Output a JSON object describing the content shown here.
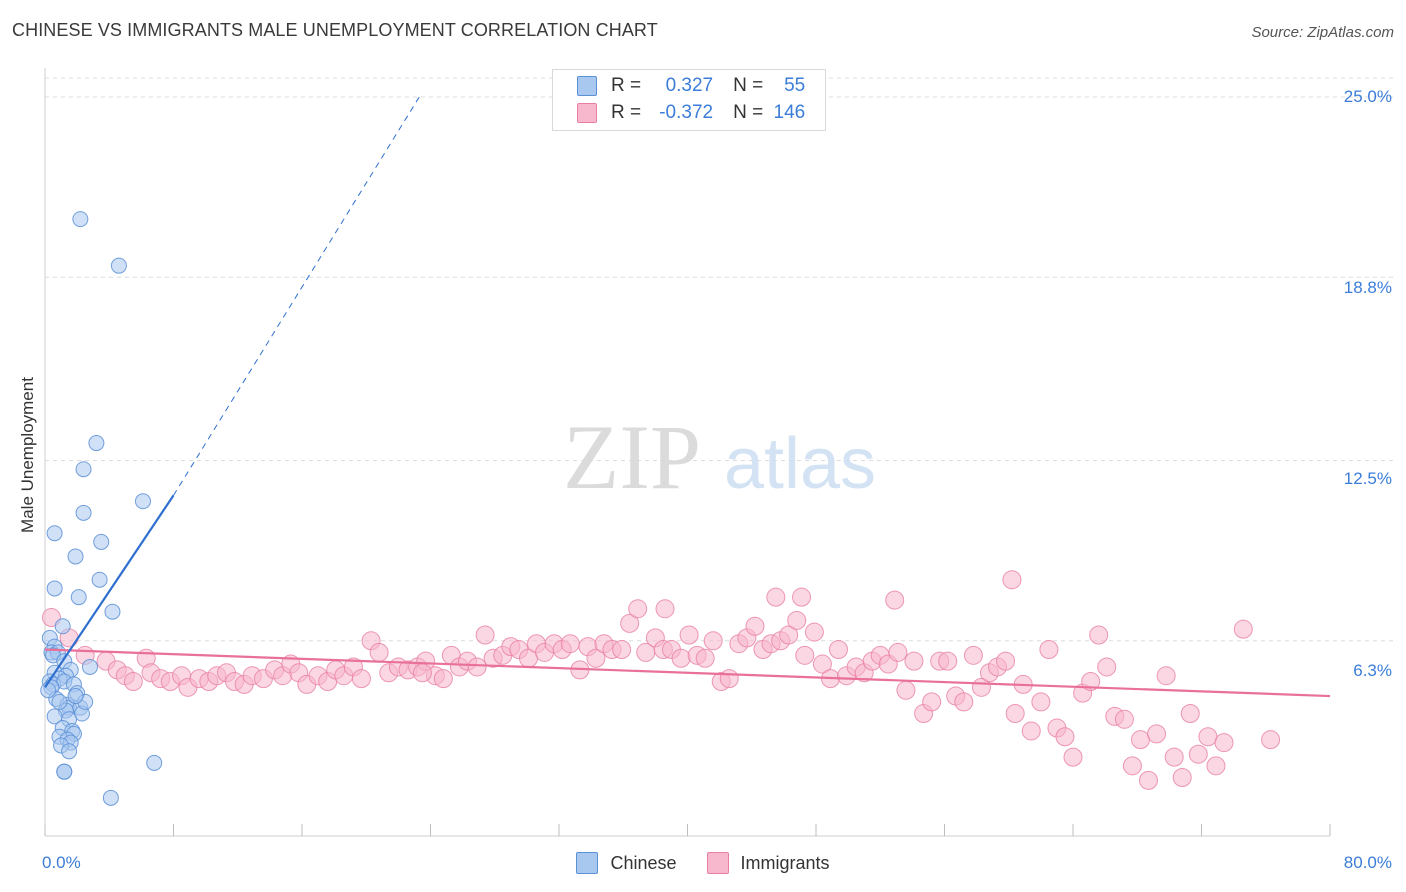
{
  "title": "CHINESE VS IMMIGRANTS MALE UNEMPLOYMENT CORRELATION CHART",
  "source": "Source: ZipAtlas.com",
  "watermark": {
    "zip": "ZIP",
    "atlas": "atlas"
  },
  "colors": {
    "chinese_fill": "#a9c8f0",
    "chinese_stroke": "#5b8fd6",
    "chinese_line": "#2f6fcf",
    "immigrants_fill": "#f7b7cc",
    "immigrants_stroke": "#e87fa3",
    "immigrants_line": "#e8709a",
    "tick_label": "#3b7dd8"
  },
  "legend": {
    "rows": [
      {
        "r_label": "R =",
        "r_value": "0.327",
        "n_label": "N =",
        "n_value": "55"
      },
      {
        "r_label": "R =",
        "r_value": "-0.372",
        "n_label": "N =",
        "n_value": "146"
      }
    ]
  },
  "bottom_legend": {
    "chinese": "Chinese",
    "immigrants": "Immigrants"
  },
  "chart_data": {
    "type": "scatter",
    "title": "CHINESE VS IMMIGRANTS MALE UNEMPLOYMENT CORRELATION CHART",
    "xlabel": "",
    "ylabel": "Male Unemployment",
    "xlim": [
      0,
      80
    ],
    "ylim": [
      0,
      27
    ],
    "x_tick_labels": [
      "0.0%",
      "80.0%"
    ],
    "y_ticks": [
      6.3,
      12.5,
      18.8,
      25.0
    ],
    "y_tick_labels": [
      "6.3%",
      "12.5%",
      "18.8%",
      "25.0%"
    ],
    "grid": "horizontal dashed",
    "series": [
      {
        "name": "Chinese",
        "r": 0.327,
        "n": 55,
        "trend": {
          "x0": 0.0,
          "y0": 4.7,
          "x1": 8.0,
          "y1": 11.3,
          "dashed_to_x": 23.3,
          "dashed_to_y": 25.0
        },
        "points": [
          [
            2.2,
            20.8
          ],
          [
            4.6,
            19.2
          ],
          [
            3.2,
            13.1
          ],
          [
            2.4,
            12.2
          ],
          [
            6.1,
            11.1
          ],
          [
            2.4,
            10.7
          ],
          [
            0.6,
            10.0
          ],
          [
            3.5,
            9.7
          ],
          [
            1.9,
            9.2
          ],
          [
            3.4,
            8.4
          ],
          [
            0.6,
            8.1
          ],
          [
            2.1,
            7.8
          ],
          [
            4.2,
            7.3
          ],
          [
            1.1,
            6.8
          ],
          [
            0.3,
            6.4
          ],
          [
            0.6,
            6.1
          ],
          [
            0.4,
            5.9
          ],
          [
            0.8,
            5.9
          ],
          [
            0.5,
            5.8
          ],
          [
            1.2,
            5.6
          ],
          [
            1.6,
            5.3
          ],
          [
            0.6,
            5.2
          ],
          [
            1.3,
            5.1
          ],
          [
            2.8,
            5.4
          ],
          [
            0.9,
            5.0
          ],
          [
            0.3,
            4.9
          ],
          [
            0.5,
            4.8
          ],
          [
            1.2,
            4.9
          ],
          [
            1.8,
            4.8
          ],
          [
            0.4,
            4.7
          ],
          [
            2.0,
            4.5
          ],
          [
            0.7,
            4.3
          ],
          [
            1.4,
            4.1
          ],
          [
            1.5,
            4.0
          ],
          [
            2.2,
            4.0
          ],
          [
            1.3,
            3.9
          ],
          [
            2.3,
            3.8
          ],
          [
            0.6,
            3.7
          ],
          [
            1.5,
            3.6
          ],
          [
            1.1,
            3.3
          ],
          [
            1.7,
            3.2
          ],
          [
            1.8,
            3.1
          ],
          [
            0.9,
            3.0
          ],
          [
            1.4,
            2.9
          ],
          [
            1.6,
            2.8
          ],
          [
            1.0,
            2.7
          ],
          [
            1.5,
            2.5
          ],
          [
            6.8,
            2.1
          ],
          [
            1.2,
            1.8
          ],
          [
            1.2,
            1.8
          ],
          [
            4.1,
            0.9
          ],
          [
            0.2,
            4.6
          ],
          [
            0.9,
            4.2
          ],
          [
            2.5,
            4.2
          ],
          [
            1.9,
            4.4
          ]
        ]
      },
      {
        "name": "Immigrants",
        "r": -0.372,
        "n": 146,
        "trend": {
          "x0": 0.0,
          "y0": 6.0,
          "x1": 80.0,
          "y1": 4.4
        },
        "points": [
          [
            0.4,
            7.1
          ],
          [
            1.5,
            6.4
          ],
          [
            2.5,
            5.8
          ],
          [
            3.8,
            5.6
          ],
          [
            4.5,
            5.3
          ],
          [
            5.0,
            5.1
          ],
          [
            5.5,
            4.9
          ],
          [
            6.3,
            5.7
          ],
          [
            6.6,
            5.2
          ],
          [
            7.2,
            5.0
          ],
          [
            7.8,
            4.9
          ],
          [
            8.5,
            5.1
          ],
          [
            8.9,
            4.7
          ],
          [
            9.6,
            5.0
          ],
          [
            10.2,
            4.9
          ],
          [
            10.7,
            5.1
          ],
          [
            11.3,
            5.2
          ],
          [
            11.8,
            4.9
          ],
          [
            12.4,
            4.8
          ],
          [
            12.9,
            5.1
          ],
          [
            13.6,
            5.0
          ],
          [
            14.3,
            5.3
          ],
          [
            14.8,
            5.1
          ],
          [
            15.3,
            5.5
          ],
          [
            15.8,
            5.2
          ],
          [
            16.3,
            4.8
          ],
          [
            17.0,
            5.1
          ],
          [
            17.6,
            4.9
          ],
          [
            18.1,
            5.3
          ],
          [
            18.6,
            5.1
          ],
          [
            19.2,
            5.4
          ],
          [
            19.7,
            5.0
          ],
          [
            20.3,
            6.3
          ],
          [
            20.8,
            5.9
          ],
          [
            21.4,
            5.2
          ],
          [
            22.0,
            5.4
          ],
          [
            22.6,
            5.3
          ],
          [
            23.2,
            5.4
          ],
          [
            23.7,
            5.6
          ],
          [
            24.3,
            5.1
          ],
          [
            24.8,
            5.0
          ],
          [
            25.3,
            5.8
          ],
          [
            25.8,
            5.4
          ],
          [
            26.3,
            5.6
          ],
          [
            26.9,
            5.4
          ],
          [
            27.4,
            6.5
          ],
          [
            27.9,
            5.7
          ],
          [
            28.5,
            5.8
          ],
          [
            29.0,
            6.1
          ],
          [
            29.5,
            6.0
          ],
          [
            30.1,
            5.7
          ],
          [
            30.6,
            6.2
          ],
          [
            31.1,
            5.9
          ],
          [
            31.7,
            6.2
          ],
          [
            32.2,
            6.0
          ],
          [
            32.7,
            6.2
          ],
          [
            33.3,
            5.3
          ],
          [
            33.8,
            6.1
          ],
          [
            34.3,
            5.7
          ],
          [
            34.8,
            6.2
          ],
          [
            35.3,
            6.0
          ],
          [
            35.9,
            6.0
          ],
          [
            36.4,
            6.9
          ],
          [
            36.9,
            7.4
          ],
          [
            37.4,
            5.9
          ],
          [
            38.0,
            6.4
          ],
          [
            38.5,
            6.0
          ],
          [
            39.0,
            6.0
          ],
          [
            39.6,
            5.7
          ],
          [
            40.1,
            6.5
          ],
          [
            40.6,
            5.8
          ],
          [
            41.1,
            5.7
          ],
          [
            41.6,
            6.3
          ],
          [
            42.1,
            4.9
          ],
          [
            42.6,
            5.0
          ],
          [
            43.2,
            6.2
          ],
          [
            43.7,
            6.4
          ],
          [
            44.2,
            6.8
          ],
          [
            44.7,
            6.0
          ],
          [
            45.2,
            6.2
          ],
          [
            45.8,
            6.3
          ],
          [
            46.3,
            6.5
          ],
          [
            46.8,
            7.0
          ],
          [
            47.3,
            5.8
          ],
          [
            47.9,
            6.6
          ],
          [
            48.4,
            5.5
          ],
          [
            48.9,
            5.0
          ],
          [
            49.4,
            6.0
          ],
          [
            49.9,
            5.1
          ],
          [
            50.5,
            5.4
          ],
          [
            51.0,
            5.2
          ],
          [
            51.5,
            5.6
          ],
          [
            52.0,
            5.8
          ],
          [
            52.5,
            5.5
          ],
          [
            53.1,
            5.9
          ],
          [
            53.6,
            4.6
          ],
          [
            54.1,
            5.6
          ],
          [
            54.7,
            3.8
          ],
          [
            55.2,
            4.2
          ],
          [
            55.7,
            5.6
          ],
          [
            56.2,
            5.6
          ],
          [
            56.7,
            4.4
          ],
          [
            57.2,
            4.2
          ],
          [
            57.8,
            5.8
          ],
          [
            58.3,
            4.7
          ],
          [
            58.8,
            5.2
          ],
          [
            59.3,
            5.4
          ],
          [
            59.8,
            5.6
          ],
          [
            60.4,
            3.8
          ],
          [
            60.9,
            4.8
          ],
          [
            61.4,
            3.2
          ],
          [
            62.0,
            4.2
          ],
          [
            62.5,
            6.0
          ],
          [
            63.0,
            3.3
          ],
          [
            63.5,
            3.0
          ],
          [
            64.0,
            2.3
          ],
          [
            64.6,
            4.5
          ],
          [
            65.1,
            4.9
          ],
          [
            65.6,
            6.5
          ],
          [
            66.1,
            5.4
          ],
          [
            66.6,
            3.7
          ],
          [
            67.2,
            3.6
          ],
          [
            67.7,
            2.0
          ],
          [
            68.2,
            2.9
          ],
          [
            68.7,
            1.5
          ],
          [
            69.2,
            3.1
          ],
          [
            69.8,
            5.1
          ],
          [
            70.3,
            2.3
          ],
          [
            70.8,
            1.6
          ],
          [
            71.3,
            3.8
          ],
          [
            71.8,
            2.4
          ],
          [
            72.4,
            3.0
          ],
          [
            72.9,
            2.0
          ],
          [
            73.4,
            2.8
          ],
          [
            74.6,
            6.7
          ],
          [
            76.3,
            2.9
          ],
          [
            60.2,
            8.4
          ],
          [
            47.1,
            7.8
          ],
          [
            45.5,
            7.8
          ],
          [
            52.9,
            7.7
          ],
          [
            38.6,
            7.4
          ],
          [
            23.5,
            5.2
          ]
        ]
      }
    ]
  }
}
